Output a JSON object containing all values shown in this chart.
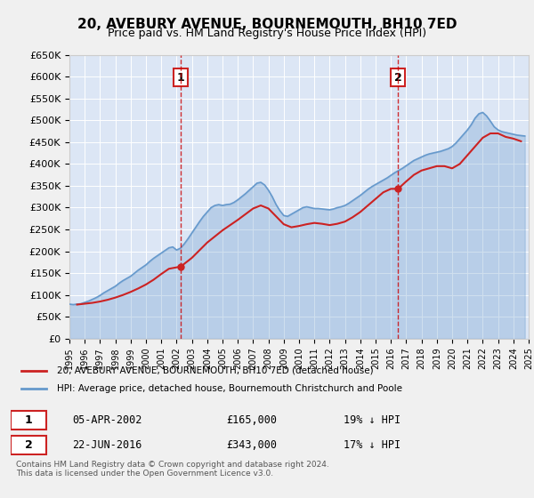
{
  "title": "20, AVEBURY AVENUE, BOURNEMOUTH, BH10 7ED",
  "subtitle": "Price paid vs. HM Land Registry's House Price Index (HPI)",
  "background_color": "#e8eef8",
  "plot_bg_color": "#dce6f5",
  "ylabel_ticks": [
    "£0",
    "£50K",
    "£100K",
    "£150K",
    "£200K",
    "£250K",
    "£300K",
    "£350K",
    "£400K",
    "£450K",
    "£500K",
    "£550K",
    "£600K",
    "£650K"
  ],
  "ytick_values": [
    0,
    50000,
    100000,
    150000,
    200000,
    250000,
    300000,
    350000,
    400000,
    450000,
    500000,
    550000,
    600000,
    650000
  ],
  "xmin_year": 1995,
  "xmax_year": 2025,
  "xtick_years": [
    1995,
    1996,
    1997,
    1998,
    1999,
    2000,
    2001,
    2002,
    2003,
    2004,
    2005,
    2006,
    2007,
    2008,
    2009,
    2010,
    2011,
    2012,
    2013,
    2014,
    2015,
    2016,
    2017,
    2018,
    2019,
    2020,
    2021,
    2022,
    2023,
    2024,
    2025
  ],
  "hpi_color": "#6699cc",
  "price_color": "#cc2222",
  "dashed_line_color": "#cc0000",
  "annotation_box_color": "#cc2222",
  "purchase1": {
    "date": "05-APR-2002",
    "price": 165000,
    "label": "1",
    "year": 2002.27
  },
  "purchase2": {
    "date": "22-JUN-2016",
    "price": 343000,
    "label": "2",
    "year": 2016.47
  },
  "legend_line1": "20, AVEBURY AVENUE, BOURNEMOUTH, BH10 7ED (detached house)",
  "legend_line2": "HPI: Average price, detached house, Bournemouth Christchurch and Poole",
  "table_row1": [
    "1",
    "05-APR-2002",
    "£165,000",
    "19% ↓ HPI"
  ],
  "table_row2": [
    "2",
    "22-JUN-2016",
    "£343,000",
    "17% ↓ HPI"
  ],
  "footer": "Contains HM Land Registry data © Crown copyright and database right 2024.\nThis data is licensed under the Open Government Licence v3.0.",
  "hpi_data_x": [
    1995.0,
    1995.25,
    1995.5,
    1995.75,
    1996.0,
    1996.25,
    1996.5,
    1996.75,
    1997.0,
    1997.25,
    1997.5,
    1997.75,
    1998.0,
    1998.25,
    1998.5,
    1998.75,
    1999.0,
    1999.25,
    1999.5,
    1999.75,
    2000.0,
    2000.25,
    2000.5,
    2000.75,
    2001.0,
    2001.25,
    2001.5,
    2001.75,
    2002.0,
    2002.25,
    2002.5,
    2002.75,
    2003.0,
    2003.25,
    2003.5,
    2003.75,
    2004.0,
    2004.25,
    2004.5,
    2004.75,
    2005.0,
    2005.25,
    2005.5,
    2005.75,
    2006.0,
    2006.25,
    2006.5,
    2006.75,
    2007.0,
    2007.25,
    2007.5,
    2007.75,
    2008.0,
    2008.25,
    2008.5,
    2008.75,
    2009.0,
    2009.25,
    2009.5,
    2009.75,
    2010.0,
    2010.25,
    2010.5,
    2010.75,
    2011.0,
    2011.25,
    2011.5,
    2011.75,
    2012.0,
    2012.25,
    2012.5,
    2012.75,
    2013.0,
    2013.25,
    2013.5,
    2013.75,
    2014.0,
    2014.25,
    2014.5,
    2014.75,
    2015.0,
    2015.25,
    2015.5,
    2015.75,
    2016.0,
    2016.25,
    2016.5,
    2016.75,
    2017.0,
    2017.25,
    2017.5,
    2017.75,
    2018.0,
    2018.25,
    2018.5,
    2018.75,
    2019.0,
    2019.25,
    2019.5,
    2019.75,
    2020.0,
    2020.25,
    2020.5,
    2020.75,
    2021.0,
    2021.25,
    2021.5,
    2021.75,
    2022.0,
    2022.25,
    2022.5,
    2022.75,
    2023.0,
    2023.25,
    2023.5,
    2023.75,
    2024.0,
    2024.25,
    2024.5,
    2024.75
  ],
  "hpi_data_y": [
    79000,
    78000,
    79000,
    80000,
    83000,
    86000,
    90000,
    94000,
    99000,
    105000,
    110000,
    115000,
    120000,
    127000,
    133000,
    138000,
    143000,
    150000,
    157000,
    163000,
    169000,
    177000,
    184000,
    190000,
    196000,
    202000,
    208000,
    210000,
    203000,
    207000,
    217000,
    229000,
    242000,
    255000,
    268000,
    280000,
    290000,
    300000,
    305000,
    307000,
    305000,
    307000,
    308000,
    312000,
    318000,
    325000,
    332000,
    340000,
    348000,
    356000,
    358000,
    352000,
    340000,
    325000,
    307000,
    293000,
    282000,
    280000,
    285000,
    290000,
    295000,
    300000,
    302000,
    300000,
    298000,
    298000,
    297000,
    296000,
    295000,
    297000,
    300000,
    302000,
    305000,
    310000,
    316000,
    322000,
    328000,
    335000,
    342000,
    348000,
    353000,
    358000,
    363000,
    368000,
    374000,
    380000,
    385000,
    390000,
    396000,
    402000,
    408000,
    412000,
    416000,
    420000,
    423000,
    425000,
    427000,
    429000,
    432000,
    435000,
    440000,
    448000,
    458000,
    468000,
    478000,
    490000,
    505000,
    515000,
    518000,
    510000,
    498000,
    485000,
    478000,
    474000,
    472000,
    470000,
    468000,
    466000,
    465000,
    464000
  ],
  "price_paid_x": [
    1995.5,
    1996.0,
    1996.5,
    1997.0,
    1997.5,
    1998.0,
    1998.5,
    1999.0,
    1999.5,
    2000.0,
    2000.5,
    2001.0,
    2001.5,
    2002.27,
    2003.0,
    2004.0,
    2005.0,
    2005.5,
    2006.0,
    2006.5,
    2007.0,
    2007.5,
    2008.0,
    2008.5,
    2009.0,
    2009.5,
    2010.0,
    2010.5,
    2011.0,
    2011.5,
    2012.0,
    2012.5,
    2013.0,
    2013.5,
    2014.0,
    2014.5,
    2015.0,
    2015.5,
    2016.0,
    2016.47,
    2017.0,
    2017.5,
    2018.0,
    2018.5,
    2019.0,
    2019.5,
    2020.0,
    2020.5,
    2021.0,
    2021.5,
    2022.0,
    2022.5,
    2023.0,
    2023.5,
    2024.0,
    2024.5
  ],
  "price_paid_y": [
    78000,
    80000,
    82000,
    85000,
    89000,
    94000,
    100000,
    107000,
    115000,
    124000,
    135000,
    148000,
    160000,
    165000,
    185000,
    220000,
    248000,
    260000,
    272000,
    285000,
    298000,
    305000,
    298000,
    280000,
    262000,
    255000,
    258000,
    262000,
    265000,
    263000,
    260000,
    263000,
    268000,
    278000,
    290000,
    305000,
    320000,
    335000,
    343000,
    343000,
    360000,
    375000,
    385000,
    390000,
    395000,
    395000,
    390000,
    400000,
    420000,
    440000,
    460000,
    470000,
    470000,
    462000,
    458000,
    452000
  ]
}
